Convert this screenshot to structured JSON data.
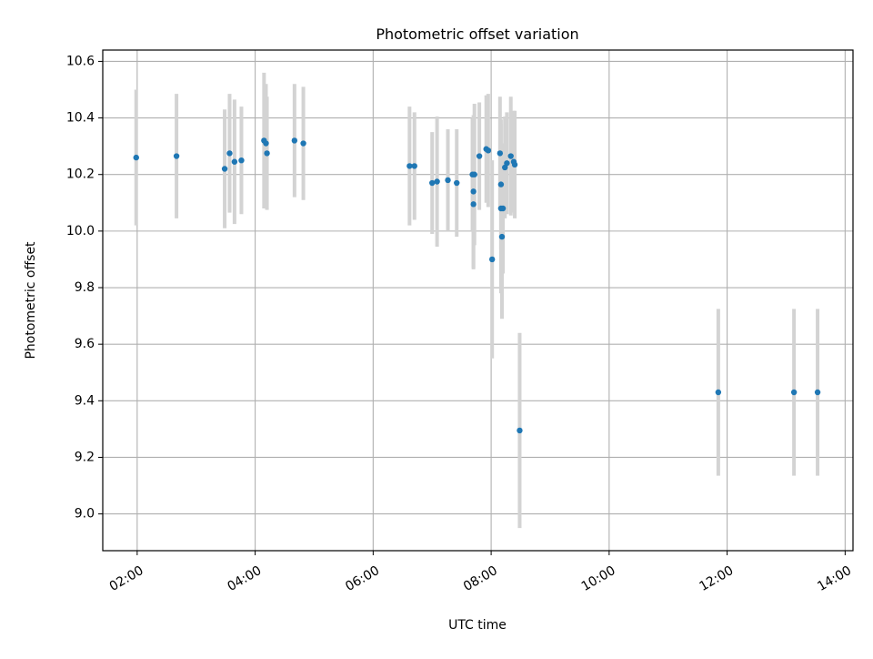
{
  "chart_data": {
    "type": "scatter",
    "title": "Photometric offset variation",
    "xlabel": "UTC time",
    "ylabel": "Photometric offset",
    "x_ticks": [
      "02:00",
      "04:00",
      "06:00",
      "08:00",
      "10:00",
      "12:00",
      "14:00"
    ],
    "y_ticks": [
      "9.0",
      "9.2",
      "9.4",
      "9.6",
      "9.8",
      "10.0",
      "10.2",
      "10.4",
      "10.6"
    ],
    "xlim": [
      "01:25",
      "14:08"
    ],
    "ylim": [
      8.87,
      10.64
    ],
    "grid": true,
    "legend": "none",
    "colors": {
      "points": "#1f77b4",
      "error_bars": "#d3d3d3",
      "grid": "#b0b0b0"
    },
    "series": [
      {
        "points": [
          {
            "x": "01:59",
            "y": 10.26,
            "err": 0.24
          },
          {
            "x": "02:40",
            "y": 10.265,
            "err": 0.22
          },
          {
            "x": "03:29",
            "y": 10.22,
            "err": 0.21
          },
          {
            "x": "03:34",
            "y": 10.275,
            "err": 0.21
          },
          {
            "x": "03:39",
            "y": 10.245,
            "err": 0.22
          },
          {
            "x": "03:46",
            "y": 10.25,
            "err": 0.19
          },
          {
            "x": "04:09",
            "y": 10.32,
            "err": 0.24
          },
          {
            "x": "04:11",
            "y": 10.31,
            "err": 0.21
          },
          {
            "x": "04:12",
            "y": 10.275,
            "err": 0.2
          },
          {
            "x": "04:40",
            "y": 10.32,
            "err": 0.2
          },
          {
            "x": "04:49",
            "y": 10.31,
            "err": 0.2
          },
          {
            "x": "06:37",
            "y": 10.23,
            "err": 0.21
          },
          {
            "x": "06:42",
            "y": 10.23,
            "err": 0.19
          },
          {
            "x": "07:00",
            "y": 10.17,
            "err": 0.18
          },
          {
            "x": "07:05",
            "y": 10.175,
            "err": 0.23
          },
          {
            "x": "07:16",
            "y": 10.18,
            "err": 0.18
          },
          {
            "x": "07:25",
            "y": 10.17,
            "err": 0.19
          },
          {
            "x": "07:41",
            "y": 10.2,
            "err": 0.2
          },
          {
            "x": "07:42",
            "y": 10.095,
            "err": 0.23
          },
          {
            "x": "07:42",
            "y": 10.14,
            "err": 0.27
          },
          {
            "x": "07:43",
            "y": 10.2,
            "err": 0.25
          },
          {
            "x": "07:48",
            "y": 10.265,
            "err": 0.19
          },
          {
            "x": "07:55",
            "y": 10.29,
            "err": 0.19
          },
          {
            "x": "07:57",
            "y": 10.285,
            "err": 0.2
          },
          {
            "x": "08:01",
            "y": 9.9,
            "err": 0.35
          },
          {
            "x": "08:09",
            "y": 10.275,
            "err": 0.2
          },
          {
            "x": "08:10",
            "y": 10.165,
            "err": 0.23
          },
          {
            "x": "08:10",
            "y": 10.08,
            "err": 0.3
          },
          {
            "x": "08:11",
            "y": 9.98,
            "err": 0.29
          },
          {
            "x": "08:12",
            "y": 10.08,
            "err": 0.23
          },
          {
            "x": "08:14",
            "y": 10.225,
            "err": 0.18
          },
          {
            "x": "08:16",
            "y": 10.24,
            "err": 0.18
          },
          {
            "x": "08:20",
            "y": 10.265,
            "err": 0.21
          },
          {
            "x": "08:23",
            "y": 10.245,
            "err": 0.18
          },
          {
            "x": "08:24",
            "y": 10.235,
            "err": 0.19
          },
          {
            "x": "08:29",
            "y": 9.295,
            "err": 0.345
          },
          {
            "x": "11:51",
            "y": 9.43,
            "err": 0.295
          },
          {
            "x": "13:08",
            "y": 9.43,
            "err": 0.295
          },
          {
            "x": "13:32",
            "y": 9.43,
            "err": 0.295
          }
        ]
      }
    ]
  }
}
